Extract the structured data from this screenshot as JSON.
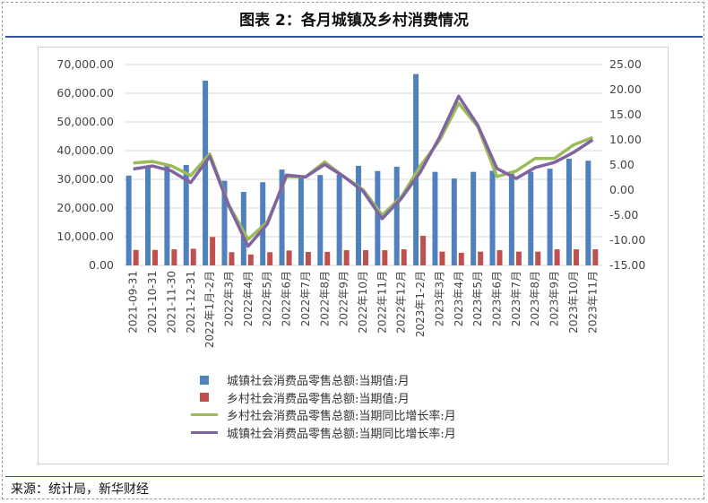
{
  "title": "图表 2：各月城镇及乡村消费情况",
  "source": "来源：统计局，新华财经",
  "colors": {
    "urban_bar": "#4f81bd",
    "rural_bar": "#c0504d",
    "rural_growth": "#9bbb59",
    "urban_growth": "#8064a2"
  },
  "chart_data": {
    "type": "bar+line",
    "categories": [
      "2021-09-31",
      "2021-10-31",
      "2021-11-30",
      "2021-12-31",
      "2022年1月-2月",
      "2022年3月",
      "2022年4月",
      "2022年5月",
      "2022年6月",
      "2022年7月",
      "2022年8月",
      "2022年9月",
      "2022年10月",
      "2022年11月",
      "2022年12月",
      "2023年1-2月",
      "2023年3月",
      "2023年4月",
      "2023年5月",
      "2023年6月",
      "2023年7月",
      "2023年8月",
      "2023年9月",
      "2023年10月",
      "2023年11月"
    ],
    "left_axis": {
      "ylim": [
        0,
        70000
      ],
      "ticks": [
        "0.00",
        "10,000.00",
        "20,000.00",
        "30,000.00",
        "40,000.00",
        "50,000.00",
        "60,000.00",
        "70,000.00"
      ]
    },
    "right_axis": {
      "ylim": [
        -15,
        25
      ],
      "ticks": [
        "-15.00",
        "-10.00",
        "-5.00",
        "0.00",
        "5.00",
        "10.00",
        "15.00",
        "20.00",
        "25.00"
      ]
    },
    "grid": true,
    "legend_position": "bottom",
    "series": [
      {
        "name": "城镇社会消费品零售总额:当期值:月",
        "type": "bar",
        "axis": "left",
        "values": [
          31300,
          34400,
          35000,
          35000,
          64400,
          29500,
          25600,
          29000,
          33400,
          31000,
          31500,
          31600,
          34700,
          32900,
          34400,
          66700,
          32600,
          30300,
          32600,
          33000,
          32000,
          32600,
          33700,
          37200,
          36500
        ]
      },
      {
        "name": "乡村社会消费品零售总额:当期值:月",
        "type": "bar",
        "axis": "left",
        "values": [
          5400,
          5400,
          5600,
          5800,
          9900,
          4600,
          3800,
          4600,
          5200,
          4700,
          4700,
          5300,
          5300,
          5300,
          5600,
          10300,
          4800,
          4400,
          4800,
          5300,
          4800,
          4800,
          5600,
          5600,
          5600
        ]
      },
      {
        "name": "乡村社会消费品零售总额:当期同比增长率:月",
        "type": "line",
        "axis": "right",
        "values": [
          5.4,
          5.7,
          4.8,
          2.9,
          7.2,
          -3.0,
          -9.8,
          -6.4,
          2.7,
          2.6,
          5.6,
          2.7,
          0.1,
          -5.0,
          -1.4,
          4.8,
          9.9,
          17.3,
          12.6,
          2.7,
          3.8,
          6.3,
          6.3,
          9.0,
          10.5
        ]
      },
      {
        "name": "城镇社会消费品零售总额:当期同比增长率:月",
        "type": "line",
        "axis": "right",
        "values": [
          4.2,
          4.8,
          3.8,
          1.5,
          6.7,
          -3.2,
          -11.2,
          -6.8,
          3.0,
          2.6,
          5.1,
          2.7,
          -0.2,
          -5.7,
          -1.7,
          3.6,
          10.5,
          18.7,
          12.9,
          4.3,
          2.3,
          4.5,
          5.5,
          7.5,
          10.0
        ]
      }
    ]
  }
}
